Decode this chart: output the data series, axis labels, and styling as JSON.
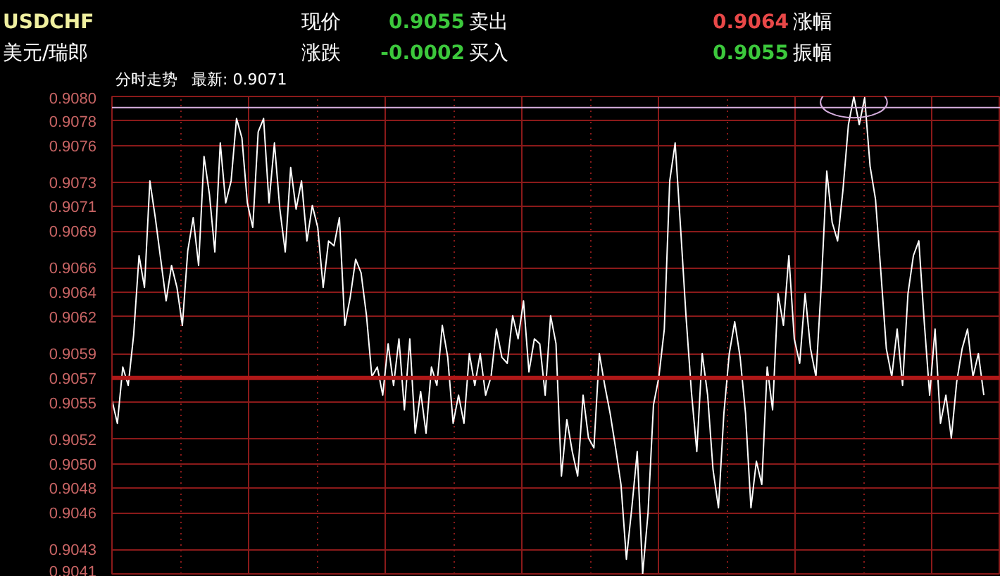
{
  "chart_data": {
    "type": "line",
    "title": "分时走势",
    "subtitle": "最新: 0.9071",
    "annotations": [
      "USDCHF",
      "美元/瑞郎",
      "现价",
      "0.9055",
      "卖出",
      "0.9064",
      "涨幅",
      "涨跌",
      "-0.0002",
      "买入",
      "0.9055",
      "振幅"
    ],
    "categories": [
      null,
      null,
      null,
      null,
      null,
      null,
      null,
      null,
      null,
      null,
      null,
      null,
      null,
      null,
      null,
      null,
      null,
      null,
      null,
      null,
      null,
      null,
      null,
      null,
      null,
      null,
      null,
      null,
      null,
      null,
      null,
      null,
      null,
      null,
      null,
      null,
      null,
      null,
      null,
      null,
      null,
      null,
      null,
      null,
      null,
      null,
      null,
      null,
      null,
      null,
      null,
      null,
      null,
      null,
      null,
      null,
      null,
      null,
      null,
      null,
      null,
      null,
      null,
      null,
      null,
      null,
      null,
      null,
      null,
      null,
      null,
      null,
      null,
      null,
      null,
      null,
      null,
      null,
      null,
      null,
      null,
      null,
      null,
      null,
      null,
      null,
      null,
      null,
      null,
      null,
      null,
      null,
      null,
      null,
      null,
      null,
      null,
      null,
      null,
      null,
      null,
      null,
      null,
      null,
      null,
      null,
      null,
      null,
      null,
      null,
      null,
      null,
      null,
      null,
      null,
      null,
      null,
      null,
      null,
      null,
      null,
      null,
      null,
      null,
      null,
      null,
      null,
      null,
      null,
      null,
      null,
      null,
      null,
      null,
      null,
      null,
      null,
      null,
      null,
      null,
      null,
      null,
      null,
      null,
      null,
      null,
      null,
      null,
      null,
      null,
      null,
      null,
      null,
      null,
      null,
      null,
      null,
      null,
      null,
      null,
      null,
      null
    ],
    "series": [
      {
        "color": "#ffffff",
        "values": [
          0.90552,
          0.90533,
          0.90579,
          0.90564,
          0.90605,
          0.9067,
          0.90644,
          0.90731,
          0.90701,
          0.90667,
          0.90633,
          0.90662,
          0.90644,
          0.90613,
          0.90674,
          0.90701,
          0.90662,
          0.90751,
          0.9072,
          0.90673,
          0.90762,
          0.90713,
          0.90731,
          0.90782,
          0.90766,
          0.90713,
          0.90693,
          0.90771,
          0.90782,
          0.90713,
          0.90762,
          0.90708,
          0.90673,
          0.90742,
          0.90708,
          0.90731,
          0.90682,
          0.90711,
          0.90693,
          0.90644,
          0.90682,
          0.90678,
          0.90701,
          0.90613,
          0.90636,
          0.90667,
          0.90656,
          0.90621,
          0.90571,
          0.90579,
          0.90556,
          0.90598,
          0.90564,
          0.90602,
          0.90544,
          0.90602,
          0.90525,
          0.90559,
          0.90525,
          0.90579,
          0.90564,
          0.90613,
          0.90587,
          0.90533,
          0.90556,
          0.90533,
          0.9059,
          0.90564,
          0.9059,
          0.90556,
          0.90571,
          0.9061,
          0.90587,
          0.90582,
          0.90621,
          0.90602,
          0.90633,
          0.90575,
          0.90602,
          0.90598,
          0.90556,
          0.90621,
          0.90598,
          0.9049,
          0.90536,
          0.9051,
          0.9049,
          0.90556,
          0.90521,
          0.90513,
          0.9059,
          0.90564,
          0.90541,
          0.90513,
          0.90483,
          0.90422,
          0.90464,
          0.9051,
          0.9041,
          0.9046,
          0.90548,
          0.90571,
          0.9061,
          0.90731,
          0.90762,
          0.90693,
          0.90621,
          0.90559,
          0.9051,
          0.9059,
          0.90556,
          0.90495,
          0.90464,
          0.90541,
          0.9059,
          0.90616,
          0.90587,
          0.90541,
          0.90464,
          0.90502,
          0.90483,
          0.90579,
          0.90544,
          0.90639,
          0.90613,
          0.9067,
          0.90602,
          0.90582,
          0.90639,
          0.90594,
          0.90571,
          0.90647,
          0.90739,
          0.90697,
          0.90682,
          0.90724,
          0.90777,
          0.908,
          0.90777,
          0.90799,
          0.90743,
          0.90716,
          0.90656,
          0.90594,
          0.90571,
          0.9061,
          0.90564,
          0.90639,
          0.9067,
          0.90682,
          0.90616,
          0.90556,
          0.9061,
          0.90533,
          0.90556,
          0.90521,
          0.90567,
          0.90594,
          0.9061,
          0.90571,
          0.9059,
          0.90556
        ]
      }
    ],
    "ylim": [
      0.9041,
      0.908
    ],
    "yticks": [
      {
        "value": 0.908,
        "label": "0.9080"
      },
      0.9078,
      0.9076,
      0.9073,
      0.9071,
      0.9069,
      0.9066,
      0.9064,
      0.9062,
      0.9059,
      0.9057,
      0.9055,
      0.9052,
      {
        "value": 0.905,
        "label": "0.9050"
      },
      0.9048,
      0.9046,
      0.9043,
      0.9041
    ],
    "ref_lines": [
      {
        "axis": "y",
        "value": 0.9057,
        "color": "#b01818"
      },
      {
        "axis": "y",
        "value": 0.90791,
        "color": "#d8b0e0"
      }
    ],
    "grid": true,
    "tick_labels": "y",
    "line_style": "solid"
  }
}
